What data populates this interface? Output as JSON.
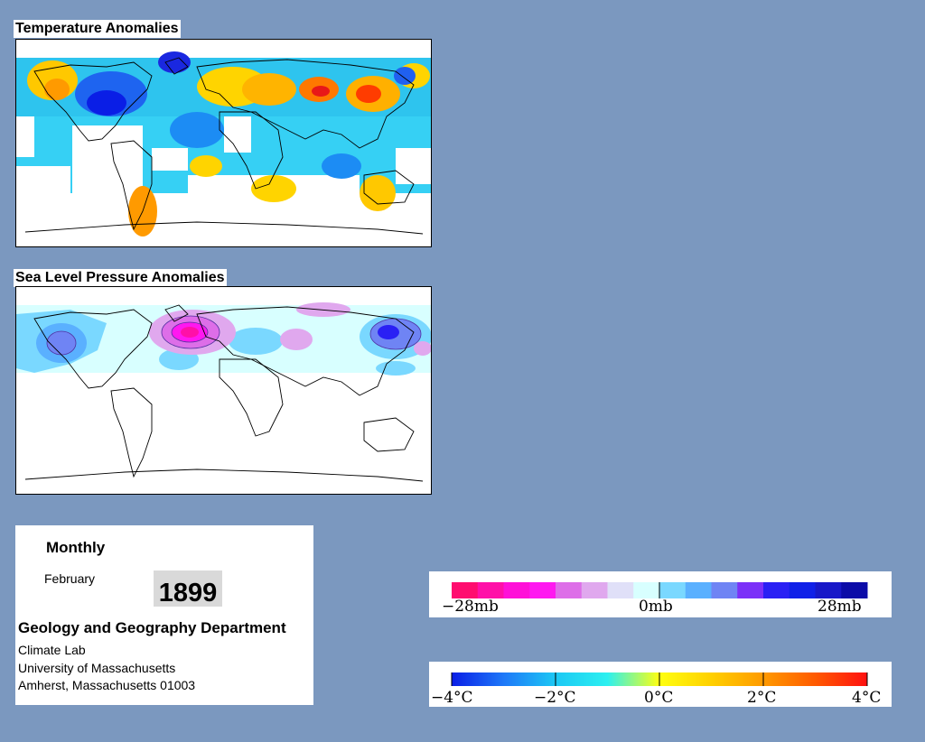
{
  "temperature_panel": {
    "title": "Temperature Anomalies"
  },
  "pressure_panel": {
    "title": "Sea Level Pressure Anomalies"
  },
  "info": {
    "frequency": "Monthly",
    "month": "February",
    "year": "1899",
    "department": "Geology and Geography Department",
    "lab": "Climate Lab",
    "university": "University of Massachusetts",
    "address": "Amherst, Massachusetts 01003"
  },
  "pressure_legend": {
    "labels": [
      "−28mb",
      "0mb",
      "28mb"
    ],
    "colors": [
      "#ff0d6f",
      "#ff10a8",
      "#ff10d8",
      "#ff18f0",
      "#dd6ee8",
      "#e0a8ee",
      "#e0e0f8",
      "#d8ffff",
      "#7ad8ff",
      "#5ab0ff",
      "#6f84f4",
      "#7b30f8",
      "#2a20f4",
      "#1020e8",
      "#1818c8",
      "#0c0ca8"
    ]
  },
  "temperature_legend": {
    "labels": [
      "−4°C",
      "−2°C",
      "0°C",
      "2°C",
      "4°C"
    ],
    "gradient": [
      "#0a1ee6",
      "#1e78f8",
      "#1cc8f4",
      "#2cf0f0",
      "#ffff10",
      "#ffd000",
      "#ff9a00",
      "#ff5a00",
      "#ff1010"
    ]
  }
}
